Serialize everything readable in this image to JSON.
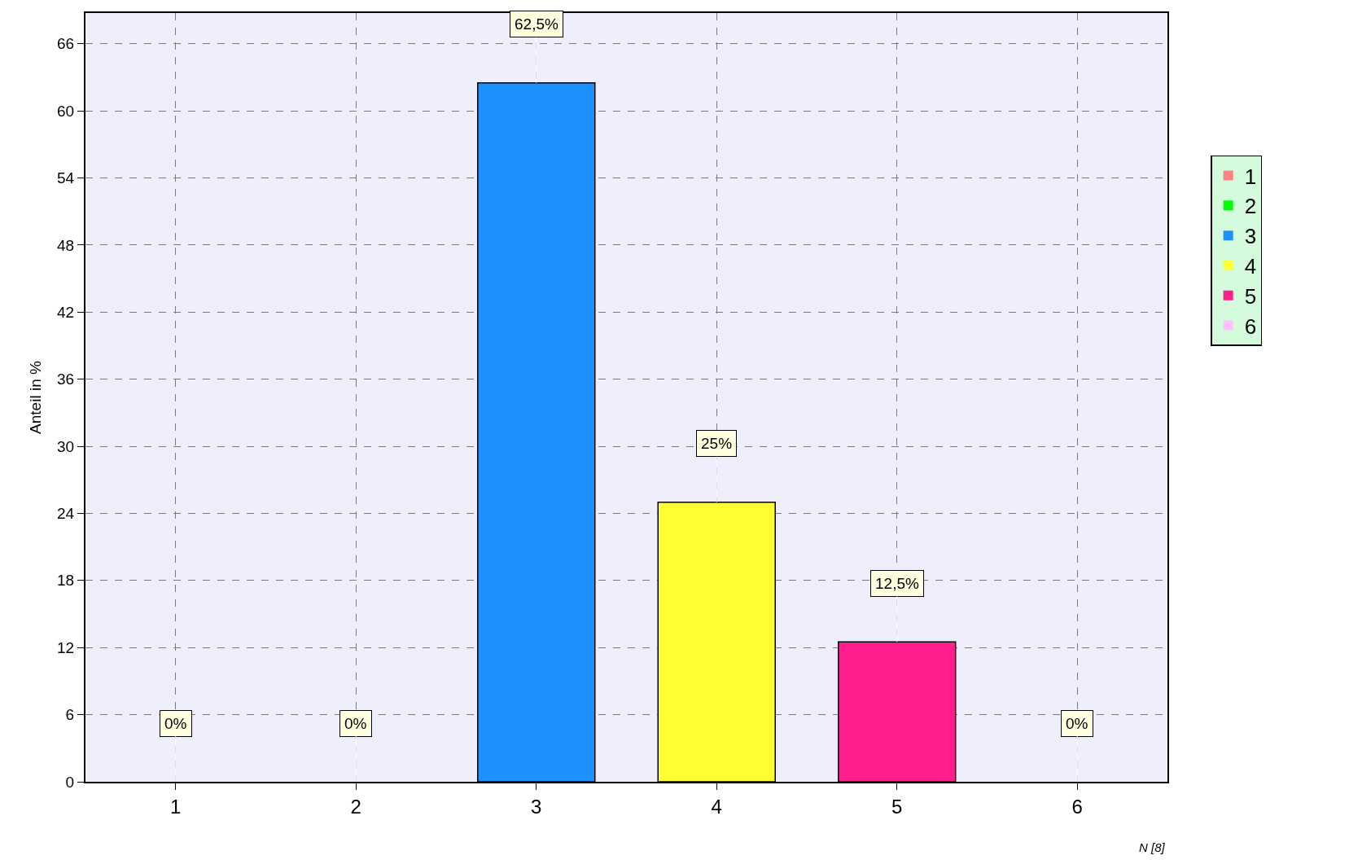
{
  "chart_data": {
    "type": "bar",
    "ylabel": "Anteil in %",
    "xlabel": "N [8]",
    "categories": [
      "1",
      "2",
      "3",
      "4",
      "5",
      "6"
    ],
    "series": [
      {
        "name": "1",
        "color": "#ff8080",
        "values": [
          0,
          null,
          null,
          null,
          null,
          null
        ],
        "value_labels": [
          "0%",
          null,
          null,
          null,
          null,
          null
        ]
      },
      {
        "name": "2",
        "color": "#00ff00",
        "values": [
          null,
          0,
          null,
          null,
          null,
          null
        ],
        "value_labels": [
          null,
          "0%",
          null,
          null,
          null,
          null
        ]
      },
      {
        "name": "3",
        "color": "#1e90ff",
        "values": [
          null,
          null,
          62.5,
          null,
          null,
          null
        ],
        "value_labels": [
          null,
          null,
          "62,5%",
          null,
          null,
          null
        ]
      },
      {
        "name": "4",
        "color": "#ffff33",
        "values": [
          null,
          null,
          null,
          25,
          null,
          null
        ],
        "value_labels": [
          null,
          null,
          null,
          "25%",
          null,
          null
        ]
      },
      {
        "name": "5",
        "color": "#ff1e8c",
        "values": [
          null,
          null,
          null,
          null,
          12.5,
          null
        ],
        "value_labels": [
          null,
          null,
          null,
          null,
          "12,5%",
          null
        ]
      },
      {
        "name": "6",
        "color": "#ffc0ff",
        "values": [
          null,
          null,
          null,
          null,
          null,
          0
        ],
        "value_labels": [
          null,
          null,
          null,
          null,
          null,
          "0%"
        ]
      }
    ],
    "ylim": [
      0,
      68.75
    ],
    "yticks": [
      0,
      6,
      12,
      18,
      24,
      30,
      36,
      42,
      48,
      54,
      60,
      66
    ],
    "grid": true,
    "legend": "top right"
  }
}
